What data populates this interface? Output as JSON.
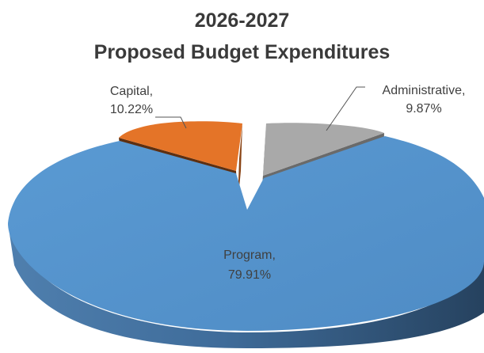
{
  "chart_data": {
    "type": "pie",
    "title_lines": [
      "2026-2027",
      "Proposed Budget Expenditures"
    ],
    "slices": [
      {
        "name": "Program",
        "value": 79.91,
        "label_line1": "Program,",
        "label_line2": "79.91%",
        "color": "#5b9bd5"
      },
      {
        "name": "Administrative",
        "value": 9.87,
        "label_line1": "Administrative,",
        "label_line2": "9.87%",
        "color": "#a5a5a5"
      },
      {
        "name": "Capital",
        "value": 10.22,
        "label_line1": "Capital,",
        "label_line2": "10.22%",
        "color": "#ed7d31"
      }
    ],
    "style": "3d-exploded-pie",
    "legend": "none",
    "grid": false
  }
}
